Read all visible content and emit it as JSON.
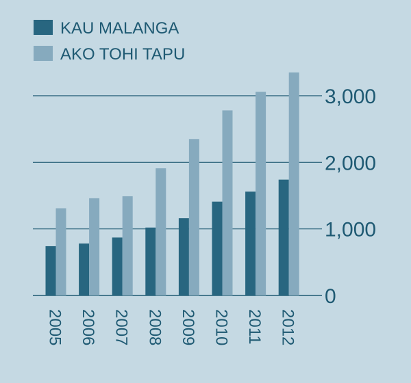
{
  "chart_data": {
    "type": "bar",
    "title": "",
    "xlabel": "",
    "ylabel": "",
    "categories": [
      "2005",
      "2006",
      "2007",
      "2008",
      "2009",
      "2010",
      "2011",
      "2012"
    ],
    "series": [
      {
        "name": "KAU MALANGA",
        "values": [
          740,
          780,
          870,
          1020,
          1160,
          1410,
          1560,
          1740
        ],
        "color": "#286680"
      },
      {
        "name": "AKO TOHI TAPU",
        "values": [
          1310,
          1460,
          1490,
          1910,
          2350,
          2780,
          3060,
          3350
        ],
        "color": "#86aabe"
      }
    ],
    "ylim": [
      0,
      3400
    ],
    "yticks": [
      0,
      1000,
      2000,
      3000
    ],
    "ytick_labels": [
      "0",
      "1,000",
      "2,000",
      "3,000"
    ],
    "y_axis_position": "right",
    "grid": true,
    "legend_position": "top-left",
    "colors": {
      "background": "#c5d9e3",
      "axis": "#1f5a73",
      "text": "#1f5a73"
    }
  }
}
